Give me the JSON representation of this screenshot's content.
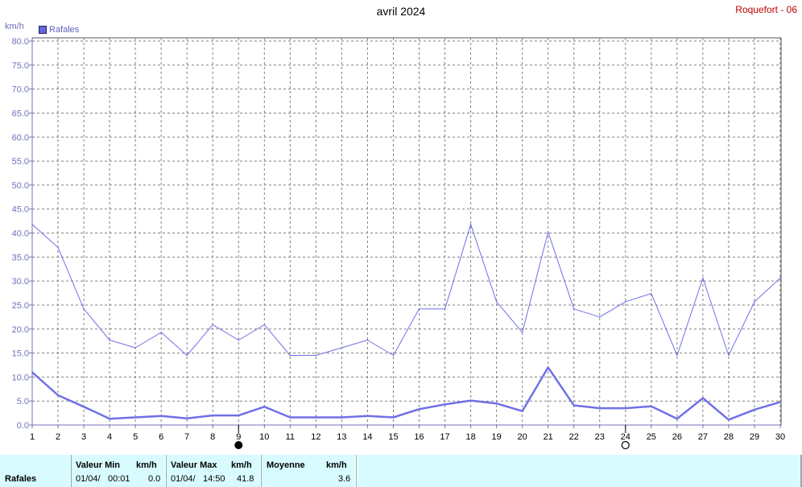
{
  "header": {
    "title": "avril 2024",
    "station": "Roquefort - 06",
    "unit": "km/h",
    "legend_label": "Rafales"
  },
  "colors": {
    "series": "#7070e8",
    "grid": "#808080",
    "axis": "#7070c0",
    "station": "#c00000",
    "stats_bg": "#d8fbff"
  },
  "chart_data": {
    "type": "line",
    "title": "avril 2024",
    "ylabel": "km/h",
    "ylim": [
      0,
      80
    ],
    "yticks": [
      "0.0",
      "5.0",
      "10.0",
      "15.0",
      "20.0",
      "25.0",
      "30.0",
      "35.0",
      "40.0",
      "45.0",
      "50.0",
      "55.0",
      "60.0",
      "65.0",
      "70.0",
      "75.0",
      "80.0"
    ],
    "x": [
      1,
      2,
      3,
      4,
      5,
      6,
      7,
      8,
      9,
      10,
      11,
      12,
      13,
      14,
      15,
      16,
      17,
      18,
      19,
      20,
      21,
      22,
      23,
      24,
      25,
      26,
      27,
      28,
      29,
      30
    ],
    "grid": true,
    "legend": "top-left",
    "moon_markers": [
      {
        "day": 9,
        "phase": "new-moon"
      },
      {
        "day": 24,
        "phase": "full-moon"
      }
    ],
    "series": [
      {
        "name": "Rafales",
        "style": "thin",
        "values": [
          41.8,
          37.0,
          24.2,
          17.7,
          16.1,
          19.3,
          14.5,
          20.9,
          17.7,
          20.9,
          14.5,
          14.5,
          16.1,
          17.7,
          14.5,
          24.2,
          24.2,
          41.8,
          25.7,
          19.3,
          40.2,
          24.2,
          22.5,
          25.7,
          27.4,
          14.5,
          30.6,
          14.5,
          25.7,
          30.6
        ]
      },
      {
        "style": "thick",
        "values": [
          11.0,
          6.2,
          3.8,
          1.3,
          1.6,
          1.9,
          1.4,
          2.0,
          2.0,
          3.8,
          1.6,
          1.6,
          1.6,
          1.9,
          1.6,
          3.3,
          4.3,
          5.1,
          4.5,
          2.9,
          12.0,
          4.1,
          3.5,
          3.5,
          3.9,
          1.3,
          5.6,
          1.1,
          3.2,
          4.8
        ]
      }
    ]
  },
  "stats": {
    "row_label": "Rafales",
    "min": {
      "header": "Valeur Min",
      "unit": "km/h",
      "date": "01/04/",
      "time": "00:01",
      "value": "0.0"
    },
    "max": {
      "header": "Valeur Max",
      "unit": "km/h",
      "date": "01/04/",
      "time": "14:50",
      "value": "41.8"
    },
    "avg": {
      "header": "Moyenne",
      "unit": "km/h",
      "value": "3.6"
    }
  }
}
